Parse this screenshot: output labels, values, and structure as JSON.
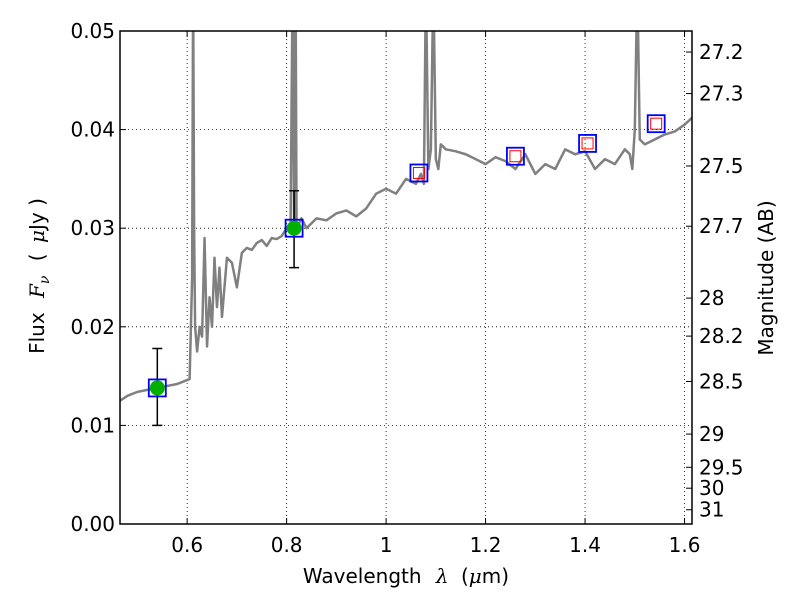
{
  "chart_data": {
    "type": "line",
    "xlabel_prefix": "Wavelength",
    "xlabel_symbol": "λ",
    "xlabel_unit_open": "(",
    "xlabel_unit_mu": "μ",
    "xlabel_unit_rest": "m)",
    "ylabel_prefix": "Flux",
    "ylabel_symbol": "F",
    "ylabel_sub": "ν",
    "ylabel_unit_open": "(",
    "ylabel_unit_mu": "μ",
    "ylabel_unit_rest": "Jy )",
    "y2label": "Magnitude (AB)",
    "xlim": [
      0.465,
      1.615
    ],
    "ylim": [
      0.0,
      0.05
    ],
    "grid": true,
    "x_ticks": [
      0.6,
      0.8,
      1.0,
      1.2,
      1.4,
      1.6
    ],
    "x_tick_labels": [
      "0.6",
      "0.8",
      "1",
      "1.2",
      "1.4",
      "1.6"
    ],
    "y_ticks": [
      0.0,
      0.01,
      0.02,
      0.03,
      0.04,
      0.05
    ],
    "y_tick_labels": [
      "0.00",
      "0.01",
      "0.02",
      "0.03",
      "0.04",
      "0.05"
    ],
    "mag_ticks": [
      27.2,
      27.3,
      27.5,
      27.7,
      28,
      28.2,
      28.5,
      29,
      29.5,
      30,
      31
    ],
    "mag_tick_labels": [
      "27.2",
      "27.3",
      "27.5",
      "27.7",
      "28",
      "28.2",
      "28.5",
      "29",
      "29.5",
      "30",
      "31"
    ],
    "spectrum": {
      "color": "#808080",
      "x": [
        0.465,
        0.48,
        0.5,
        0.52,
        0.54,
        0.56,
        0.58,
        0.595,
        0.605,
        0.61,
        0.612,
        0.614,
        0.616,
        0.62,
        0.625,
        0.63,
        0.635,
        0.64,
        0.645,
        0.65,
        0.655,
        0.66,
        0.665,
        0.67,
        0.68,
        0.69,
        0.7,
        0.71,
        0.72,
        0.73,
        0.74,
        0.75,
        0.76,
        0.77,
        0.78,
        0.79,
        0.8,
        0.808,
        0.812,
        0.815,
        0.818,
        0.82,
        0.825,
        0.83,
        0.84,
        0.86,
        0.88,
        0.9,
        0.92,
        0.94,
        0.96,
        0.98,
        1.0,
        1.02,
        1.04,
        1.06,
        1.07,
        1.076,
        1.08,
        1.085,
        1.09,
        1.095,
        1.1,
        1.105,
        1.11,
        1.12,
        1.14,
        1.16,
        1.18,
        1.2,
        1.22,
        1.24,
        1.26,
        1.28,
        1.3,
        1.32,
        1.34,
        1.36,
        1.38,
        1.4,
        1.42,
        1.44,
        1.46,
        1.48,
        1.49,
        1.495,
        1.5,
        1.505,
        1.51,
        1.52,
        1.54,
        1.56,
        1.58,
        1.6,
        1.615
      ],
      "y": [
        0.0125,
        0.013,
        0.0134,
        0.0136,
        0.0138,
        0.014,
        0.0142,
        0.0145,
        0.0147,
        0.025,
        0.055,
        0.03,
        0.02,
        0.0175,
        0.02,
        0.019,
        0.029,
        0.018,
        0.023,
        0.02,
        0.027,
        0.022,
        0.026,
        0.021,
        0.027,
        0.0265,
        0.024,
        0.0275,
        0.028,
        0.0278,
        0.0285,
        0.0288,
        0.0282,
        0.029,
        0.0289,
        0.0292,
        0.03,
        0.0305,
        0.055,
        0.0302,
        0.055,
        0.03,
        0.0305,
        0.031,
        0.03,
        0.031,
        0.0308,
        0.0315,
        0.0318,
        0.0312,
        0.032,
        0.0335,
        0.034,
        0.0335,
        0.035,
        0.0345,
        0.0355,
        0.0345,
        0.055,
        0.036,
        0.038,
        0.055,
        0.037,
        0.036,
        0.0385,
        0.038,
        0.0378,
        0.0375,
        0.037,
        0.0365,
        0.0372,
        0.0368,
        0.036,
        0.0375,
        0.0355,
        0.0365,
        0.036,
        0.038,
        0.0375,
        0.0378,
        0.036,
        0.037,
        0.0365,
        0.038,
        0.0375,
        0.036,
        0.04,
        0.055,
        0.039,
        0.0385,
        0.039,
        0.0395,
        0.0398,
        0.0405,
        0.0412
      ]
    },
    "photometry_detected": {
      "color": "#00b000",
      "box_color": "#0000ff",
      "points": [
        {
          "x": 0.54,
          "y": 0.0138,
          "yerr_low": 0.01,
          "yerr_high": 0.0178
        },
        {
          "x": 0.815,
          "y": 0.03,
          "yerr_low": 0.026,
          "yerr_high": 0.0338
        }
      ]
    },
    "photometry_model": {
      "box_color": "#0000ff",
      "inner_color": "#ff0000",
      "points": [
        {
          "x": 1.066,
          "y": 0.0356
        },
        {
          "x": 1.26,
          "y": 0.0373
        },
        {
          "x": 1.405,
          "y": 0.0386
        },
        {
          "x": 1.543,
          "y": 0.0406
        }
      ]
    }
  }
}
